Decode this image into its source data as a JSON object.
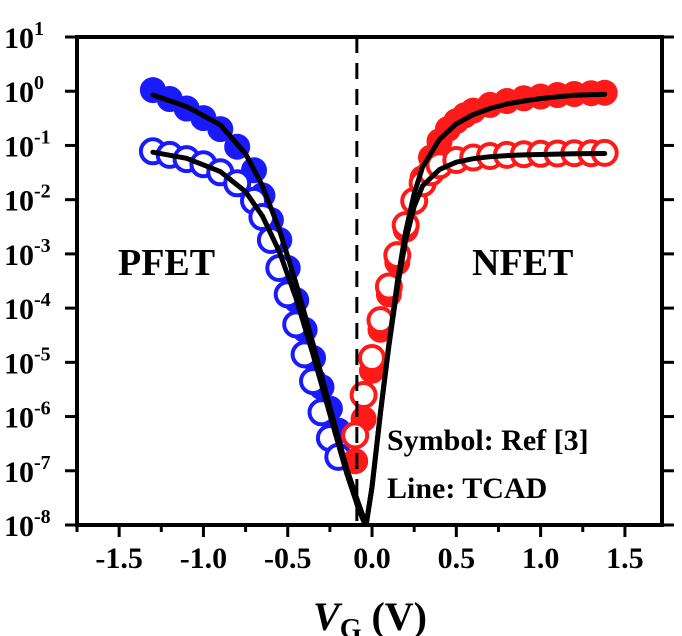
{
  "chart_data": {
    "type": "scatter",
    "title": "",
    "xlabel": {
      "main": "V",
      "sub": "G",
      "unit": "(V)"
    },
    "ylabel": "",
    "xlim": [
      -1.75,
      1.72
    ],
    "ylim_log10": [
      -8,
      1
    ],
    "y_scale": "log",
    "grid": false,
    "x_ticks": [
      {
        "value": -1.5,
        "label": "-1.5"
      },
      {
        "value": -1.0,
        "label": "-1.0"
      },
      {
        "value": -0.5,
        "label": "-0.5"
      },
      {
        "value": 0.0,
        "label": "0.0"
      },
      {
        "value": 0.5,
        "label": "0.5"
      },
      {
        "value": 1.0,
        "label": "1.0"
      },
      {
        "value": 1.5,
        "label": "1.5"
      }
    ],
    "y_ticks": [
      {
        "exp": 1,
        "base": "10",
        "sup": "1"
      },
      {
        "exp": 0,
        "base": "10",
        "sup": "0"
      },
      {
        "exp": -1,
        "base": "10",
        "sup": "-1"
      },
      {
        "exp": -2,
        "base": "10",
        "sup": "-2"
      },
      {
        "exp": -3,
        "base": "10",
        "sup": "-3"
      },
      {
        "exp": -4,
        "base": "10",
        "sup": "-4"
      },
      {
        "exp": -5,
        "base": "10",
        "sup": "-5"
      },
      {
        "exp": -6,
        "base": "10",
        "sup": "-6"
      },
      {
        "exp": -7,
        "base": "10",
        "sup": "-7"
      },
      {
        "exp": -8,
        "base": "10",
        "sup": "-8"
      }
    ],
    "reference_line_x": -0.09,
    "annotations": {
      "pfet": "PFET",
      "nfet": "NFET",
      "symbol_note": "Symbol: Ref [3]",
      "line_note": "Line: TCAD"
    },
    "series": [
      {
        "marker": "filled",
        "color": "#1a1aff",
        "points": [
          [
            -1.3,
            1.05
          ],
          [
            -1.2,
            0.72
          ],
          [
            -1.1,
            0.48
          ],
          [
            -1.0,
            0.32
          ],
          [
            -0.9,
            0.2
          ],
          [
            -0.8,
            0.095
          ],
          [
            -0.7,
            0.035
          ],
          [
            -0.65,
            0.012
          ],
          [
            -0.6,
            0.0042
          ],
          [
            -0.55,
            0.0018
          ],
          [
            -0.5,
            0.00055
          ],
          [
            -0.45,
            0.00014
          ],
          [
            -0.4,
            4e-05
          ],
          [
            -0.35,
            1.2e-05
          ],
          [
            -0.3,
            3.5e-06
          ],
          [
            -0.25,
            1.4e-06
          ],
          [
            -0.2,
            5.5e-07
          ]
        ]
      },
      {
        "marker": "open",
        "color": "#1a1aff",
        "points": [
          [
            -1.3,
            0.078
          ],
          [
            -1.2,
            0.067
          ],
          [
            -1.1,
            0.056
          ],
          [
            -1.0,
            0.045
          ],
          [
            -0.9,
            0.032
          ],
          [
            -0.8,
            0.02
          ],
          [
            -0.7,
            0.0095
          ],
          [
            -0.65,
            0.0048
          ],
          [
            -0.6,
            0.0018
          ],
          [
            -0.55,
            0.00055
          ],
          [
            -0.5,
            0.00018
          ],
          [
            -0.45,
            5e-05
          ],
          [
            -0.4,
            1.4e-05
          ],
          [
            -0.35,
            4.5e-06
          ],
          [
            -0.3,
            1.2e-06
          ],
          [
            -0.25,
            4e-07
          ],
          [
            -0.2,
            1.8e-07
          ]
        ]
      },
      {
        "marker": "filled",
        "color": "#ff1a1a",
        "points": [
          [
            -0.1,
            1.5e-07
          ],
          [
            -0.05,
            9e-07
          ],
          [
            0.0,
            7e-06
          ],
          [
            0.05,
            4e-05
          ],
          [
            0.1,
            0.00018
          ],
          [
            0.15,
            0.0007
          ],
          [
            0.2,
            0.0028
          ],
          [
            0.25,
            0.009
          ],
          [
            0.3,
            0.025
          ],
          [
            0.35,
            0.06
          ],
          [
            0.4,
            0.12
          ],
          [
            0.45,
            0.2
          ],
          [
            0.5,
            0.28
          ],
          [
            0.55,
            0.36
          ],
          [
            0.6,
            0.44
          ],
          [
            0.7,
            0.56
          ],
          [
            0.8,
            0.66
          ],
          [
            0.9,
            0.74
          ],
          [
            1.0,
            0.8
          ],
          [
            1.1,
            0.85
          ],
          [
            1.2,
            0.89
          ],
          [
            1.3,
            0.92
          ],
          [
            1.38,
            0.94
          ]
        ]
      },
      {
        "marker": "open",
        "color": "#ff1a1a",
        "points": [
          [
            -0.1,
            4.5e-07
          ],
          [
            -0.05,
            2.5e-06
          ],
          [
            0.0,
            1.2e-05
          ],
          [
            0.05,
            6e-05
          ],
          [
            0.1,
            0.00025
          ],
          [
            0.15,
            0.00095
          ],
          [
            0.2,
            0.0034
          ],
          [
            0.25,
            0.0095
          ],
          [
            0.3,
            0.02
          ],
          [
            0.35,
            0.032
          ],
          [
            0.4,
            0.043
          ],
          [
            0.5,
            0.054
          ],
          [
            0.6,
            0.06
          ],
          [
            0.7,
            0.064
          ],
          [
            0.8,
            0.067
          ],
          [
            0.9,
            0.069
          ],
          [
            1.0,
            0.07
          ],
          [
            1.1,
            0.071
          ],
          [
            1.2,
            0.072
          ],
          [
            1.3,
            0.072
          ],
          [
            1.38,
            0.073
          ]
        ]
      },
      {
        "marker": "line",
        "color": "#000000",
        "points": [
          [
            -1.3,
            0.85
          ],
          [
            -1.1,
            0.52
          ],
          [
            -0.9,
            0.24
          ],
          [
            -0.75,
            0.07
          ],
          [
            -0.65,
            0.018
          ],
          [
            -0.55,
            0.0028
          ],
          [
            -0.45,
            0.00028
          ],
          [
            -0.35,
            2.2e-05
          ],
          [
            -0.25,
            1.5e-06
          ],
          [
            -0.15,
            1.1e-07
          ],
          [
            -0.08,
            2.5e-08
          ],
          [
            0.0,
            5e-09
          ]
        ]
      },
      {
        "marker": "line",
        "color": "#000000",
        "points": [
          [
            -1.3,
            0.075
          ],
          [
            -1.1,
            0.058
          ],
          [
            -0.9,
            0.033
          ],
          [
            -0.75,
            0.014
          ],
          [
            -0.65,
            0.005
          ],
          [
            -0.55,
            0.0011
          ],
          [
            -0.45,
            0.00015
          ],
          [
            -0.35,
            1.4e-05
          ],
          [
            -0.25,
            1.1e-06
          ],
          [
            -0.15,
            9e-08
          ],
          [
            -0.08,
            2e-08
          ],
          [
            0.0,
            5e-09
          ]
        ]
      },
      {
        "marker": "line",
        "color": "#000000",
        "points": [
          [
            -0.04,
            8e-09
          ],
          [
            0.0,
            5e-08
          ],
          [
            0.05,
            1.2e-06
          ],
          [
            0.1,
            2.2e-05
          ],
          [
            0.15,
            0.0003
          ],
          [
            0.2,
            0.0026
          ],
          [
            0.25,
            0.013
          ],
          [
            0.3,
            0.04
          ],
          [
            0.4,
            0.13
          ],
          [
            0.5,
            0.25
          ],
          [
            0.6,
            0.37
          ],
          [
            0.7,
            0.48
          ],
          [
            0.8,
            0.58
          ],
          [
            0.9,
            0.66
          ],
          [
            1.0,
            0.73
          ],
          [
            1.1,
            0.79
          ],
          [
            1.2,
            0.84
          ],
          [
            1.38,
            0.88
          ]
        ]
      },
      {
        "marker": "line",
        "color": "#000000",
        "points": [
          [
            -0.04,
            8e-09
          ],
          [
            0.0,
            5e-08
          ],
          [
            0.05,
            1.2e-06
          ],
          [
            0.1,
            2e-05
          ],
          [
            0.15,
            0.00024
          ],
          [
            0.2,
            0.0018
          ],
          [
            0.25,
            0.0075
          ],
          [
            0.3,
            0.018
          ],
          [
            0.4,
            0.036
          ],
          [
            0.5,
            0.049
          ],
          [
            0.6,
            0.057
          ],
          [
            0.7,
            0.062
          ],
          [
            0.8,
            0.065
          ],
          [
            0.9,
            0.067
          ],
          [
            1.0,
            0.068
          ],
          [
            1.2,
            0.07
          ],
          [
            1.38,
            0.071
          ]
        ]
      }
    ]
  }
}
